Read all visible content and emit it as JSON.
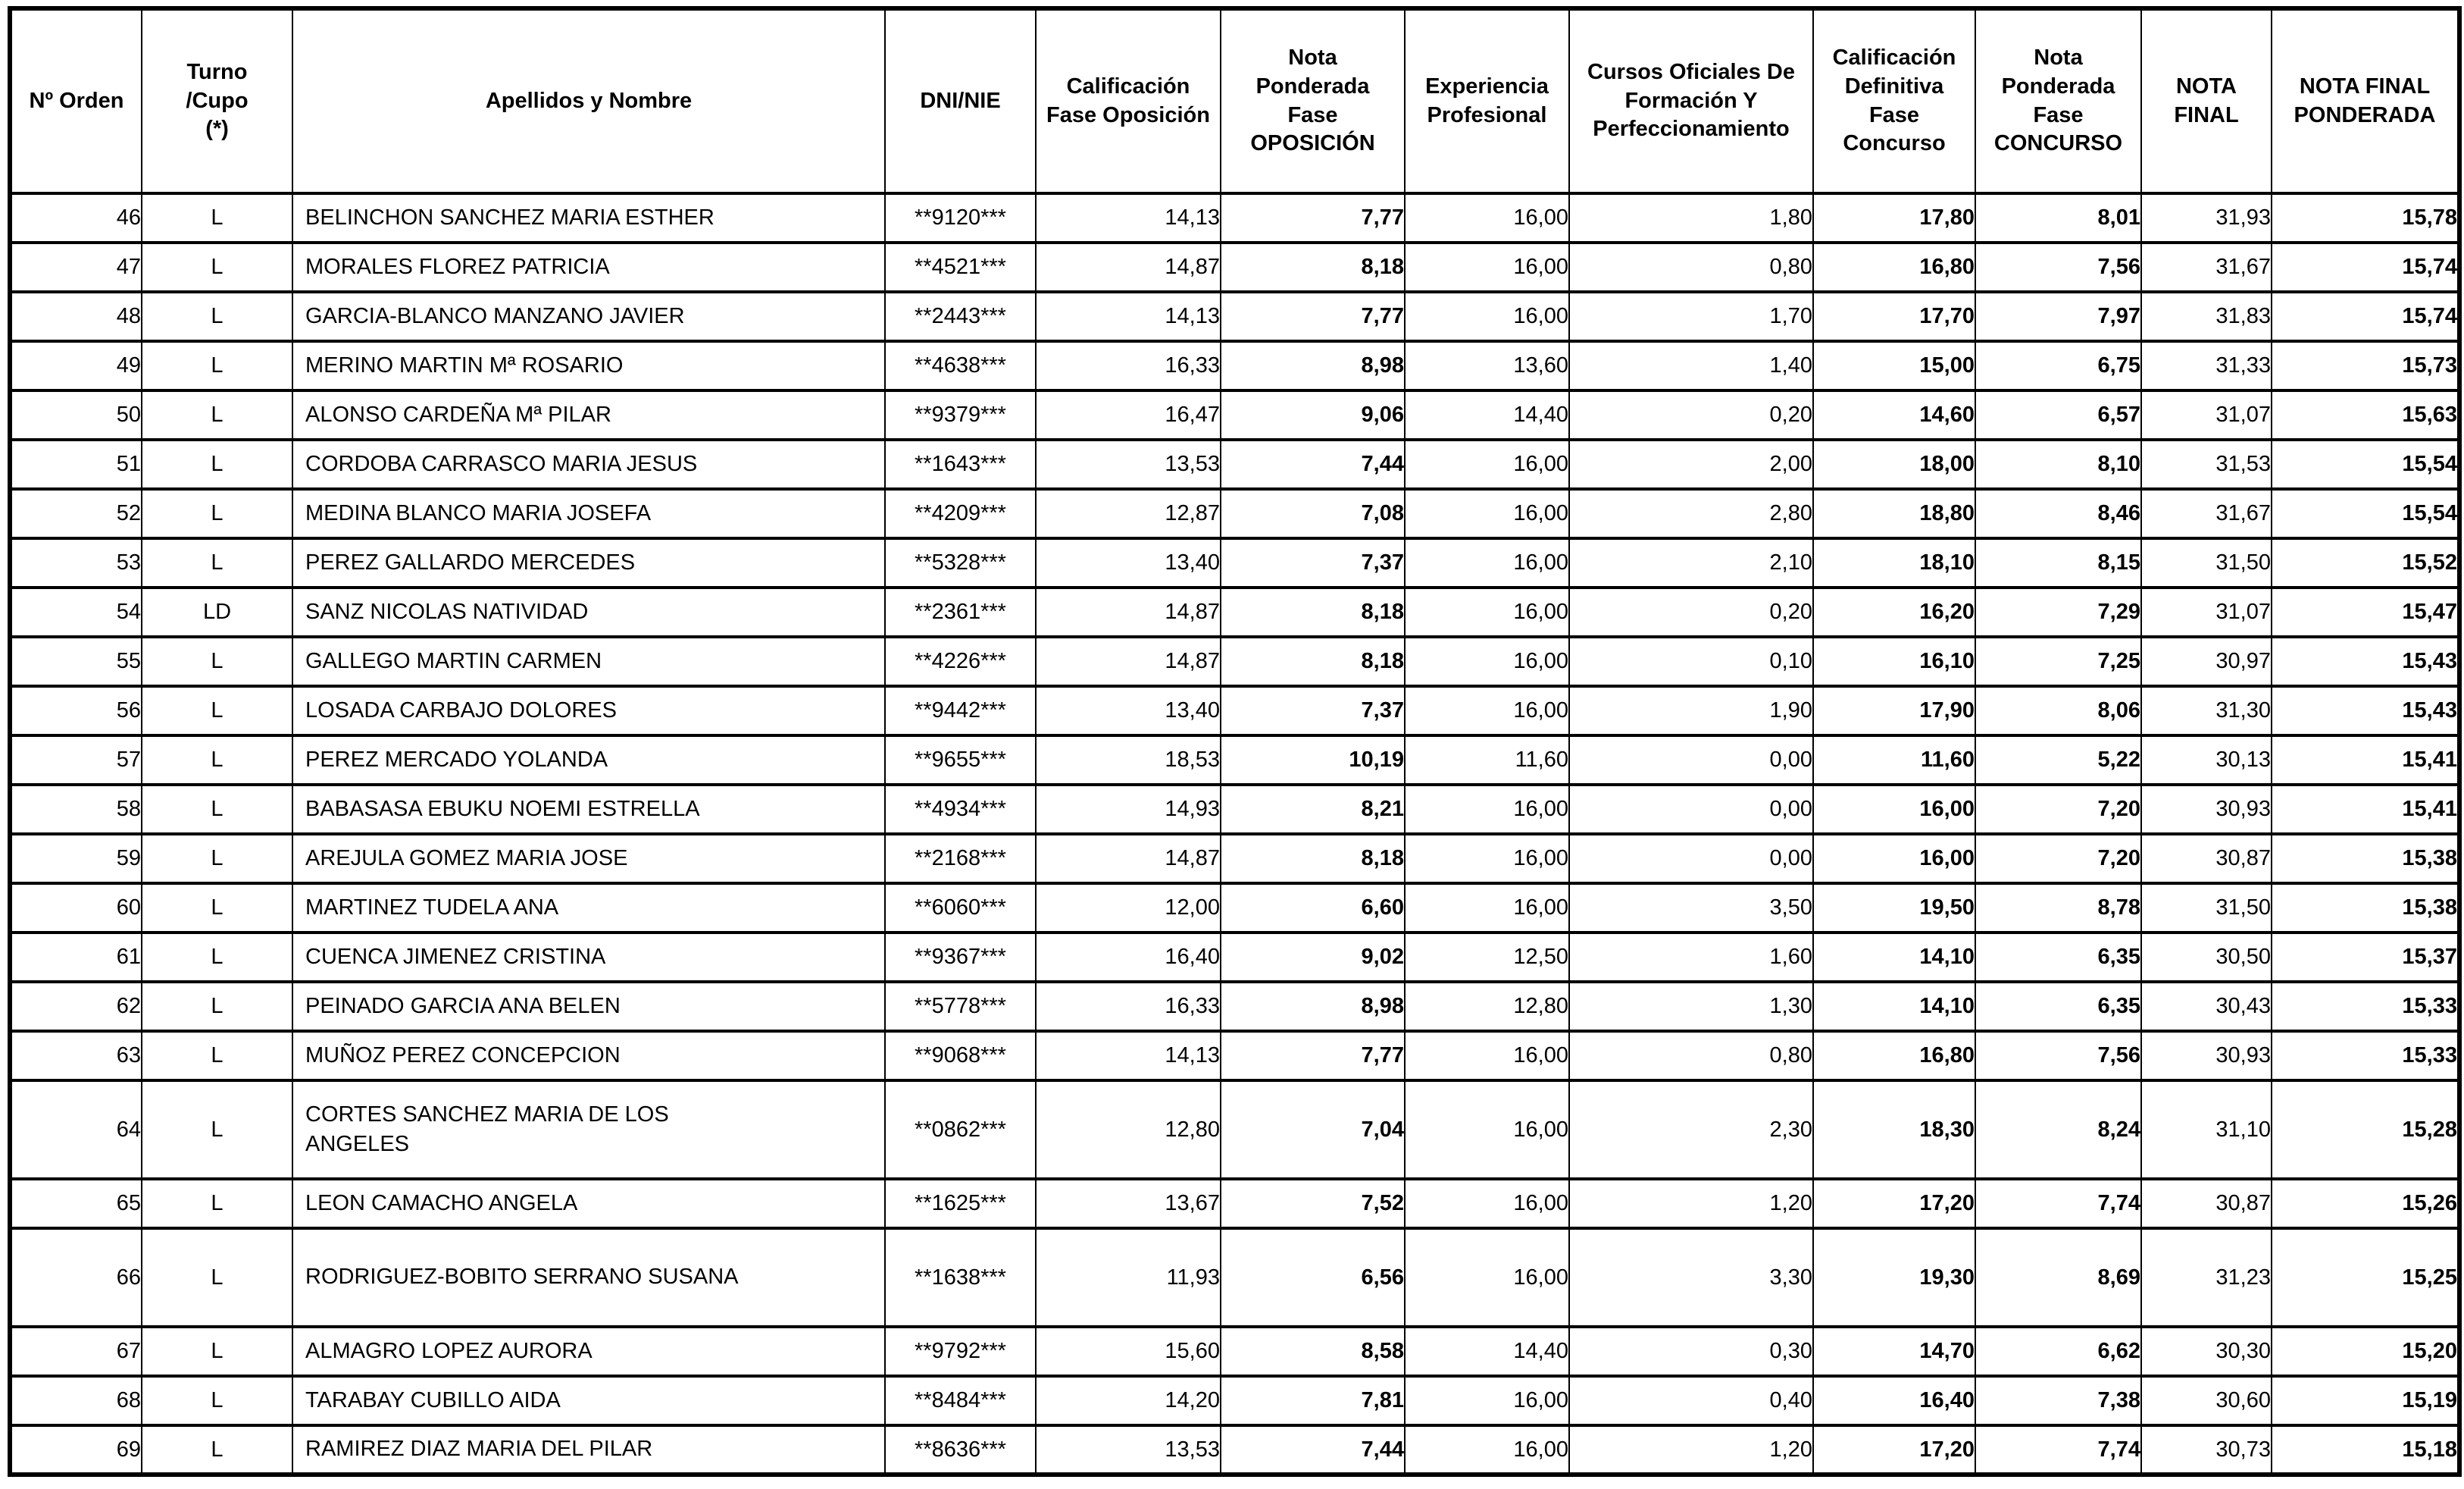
{
  "colors": {
    "background": "#ffffff",
    "text": "#000000",
    "border": "#000000"
  },
  "table": {
    "headers": [
      "Nº Orden",
      "Turno\n/Cupo\n(*)",
      "Apellidos y Nombre",
      "DNI/NIE",
      "Calificación\nFase Oposición",
      "Nota\nPonderada\nFase\nOPOSICIÓN",
      "Experiencia\nProfesional",
      "Cursos Oficiales De\nFormación Y\nPerfeccionamiento",
      "Calificación\nDefinitiva\nFase\nConcurso",
      "Nota\nPonderada\nFase\nCONCURSO",
      "NOTA\nFINAL",
      "NOTA FINAL\nPONDERADA"
    ],
    "rows": [
      [
        "46",
        "L",
        "BELINCHON SANCHEZ MARIA ESTHER",
        "**9120***",
        "14,13",
        "7,77",
        "16,00",
        "1,80",
        "17,80",
        "8,01",
        "31,93",
        "15,78"
      ],
      [
        "47",
        "L",
        "MORALES FLOREZ PATRICIA",
        "**4521***",
        "14,87",
        "8,18",
        "16,00",
        "0,80",
        "16,80",
        "7,56",
        "31,67",
        "15,74"
      ],
      [
        "48",
        "L",
        "GARCIA-BLANCO MANZANO JAVIER",
        "**2443***",
        "14,13",
        "7,77",
        "16,00",
        "1,70",
        "17,70",
        "7,97",
        "31,83",
        "15,74"
      ],
      [
        "49",
        "L",
        "MERINO MARTIN Mª ROSARIO",
        "**4638***",
        "16,33",
        "8,98",
        "13,60",
        "1,40",
        "15,00",
        "6,75",
        "31,33",
        "15,73"
      ],
      [
        "50",
        "L",
        "ALONSO CARDEÑA Mª PILAR",
        "**9379***",
        "16,47",
        "9,06",
        "14,40",
        "0,20",
        "14,60",
        "6,57",
        "31,07",
        "15,63"
      ],
      [
        "51",
        "L",
        "CORDOBA CARRASCO MARIA JESUS",
        "**1643***",
        "13,53",
        "7,44",
        "16,00",
        "2,00",
        "18,00",
        "8,10",
        "31,53",
        "15,54"
      ],
      [
        "52",
        "L",
        "MEDINA BLANCO MARIA JOSEFA",
        "**4209***",
        "12,87",
        "7,08",
        "16,00",
        "2,80",
        "18,80",
        "8,46",
        "31,67",
        "15,54"
      ],
      [
        "53",
        "L",
        "PEREZ GALLARDO MERCEDES",
        "**5328***",
        "13,40",
        "7,37",
        "16,00",
        "2,10",
        "18,10",
        "8,15",
        "31,50",
        "15,52"
      ],
      [
        "54",
        "LD",
        "SANZ NICOLAS NATIVIDAD",
        "**2361***",
        "14,87",
        "8,18",
        "16,00",
        "0,20",
        "16,20",
        "7,29",
        "31,07",
        "15,47"
      ],
      [
        "55",
        "L",
        "GALLEGO MARTIN CARMEN",
        "**4226***",
        "14,87",
        "8,18",
        "16,00",
        "0,10",
        "16,10",
        "7,25",
        "30,97",
        "15,43"
      ],
      [
        "56",
        "L",
        "LOSADA CARBAJO DOLORES",
        "**9442***",
        "13,40",
        "7,37",
        "16,00",
        "1,90",
        "17,90",
        "8,06",
        "31,30",
        "15,43"
      ],
      [
        "57",
        "L",
        "PEREZ MERCADO YOLANDA",
        "**9655***",
        "18,53",
        "10,19",
        "11,60",
        "0,00",
        "11,60",
        "5,22",
        "30,13",
        "15,41"
      ],
      [
        "58",
        "L",
        "BABASASA EBUKU NOEMI ESTRELLA",
        "**4934***",
        "14,93",
        "8,21",
        "16,00",
        "0,00",
        "16,00",
        "7,20",
        "30,93",
        "15,41"
      ],
      [
        "59",
        "L",
        "AREJULA GOMEZ MARIA JOSE",
        "**2168***",
        "14,87",
        "8,18",
        "16,00",
        "0,00",
        "16,00",
        "7,20",
        "30,87",
        "15,38"
      ],
      [
        "60",
        "L",
        "MARTINEZ TUDELA ANA",
        "**6060***",
        "12,00",
        "6,60",
        "16,00",
        "3,50",
        "19,50",
        "8,78",
        "31,50",
        "15,38"
      ],
      [
        "61",
        "L",
        "CUENCA JIMENEZ CRISTINA",
        "**9367***",
        "16,40",
        "9,02",
        "12,50",
        "1,60",
        "14,10",
        "6,35",
        "30,50",
        "15,37"
      ],
      [
        "62",
        "L",
        "PEINADO GARCIA ANA BELEN",
        "**5778***",
        "16,33",
        "8,98",
        "12,80",
        "1,30",
        "14,10",
        "6,35",
        "30,43",
        "15,33"
      ],
      [
        "63",
        "L",
        "MUÑOZ PEREZ CONCEPCION",
        "**9068***",
        "14,13",
        "7,77",
        "16,00",
        "0,80",
        "16,80",
        "7,56",
        "30,93",
        "15,33"
      ],
      [
        "64",
        "L",
        "CORTES SANCHEZ MARIA DE LOS\nANGELES",
        "**0862***",
        "12,80",
        "7,04",
        "16,00",
        "2,30",
        "18,30",
        "8,24",
        "31,10",
        "15,28"
      ],
      [
        "65",
        "L",
        "LEON CAMACHO ANGELA",
        "**1625***",
        "13,67",
        "7,52",
        "16,00",
        "1,20",
        "17,20",
        "7,74",
        "30,87",
        "15,26"
      ],
      [
        "66",
        "L",
        "RODRIGUEZ-BOBITO SERRANO SUSANA",
        "**1638***",
        "11,93",
        "6,56",
        "16,00",
        "3,30",
        "19,30",
        "8,69",
        "31,23",
        "15,25"
      ],
      [
        "67",
        "L",
        "ALMAGRO LOPEZ AURORA",
        "**9792***",
        "15,60",
        "8,58",
        "14,40",
        "0,30",
        "14,70",
        "6,62",
        "30,30",
        "15,20"
      ],
      [
        "68",
        "L",
        "TARABAY CUBILLO AIDA",
        "**8484***",
        "14,20",
        "7,81",
        "16,00",
        "0,40",
        "16,40",
        "7,38",
        "30,60",
        "15,19"
      ],
      [
        "69",
        "L",
        "RAMIREZ DIAZ MARIA DEL PILAR",
        "**8636***",
        "13,53",
        "7,44",
        "16,00",
        "1,20",
        "17,20",
        "7,74",
        "30,73",
        "15,18"
      ]
    ]
  }
}
